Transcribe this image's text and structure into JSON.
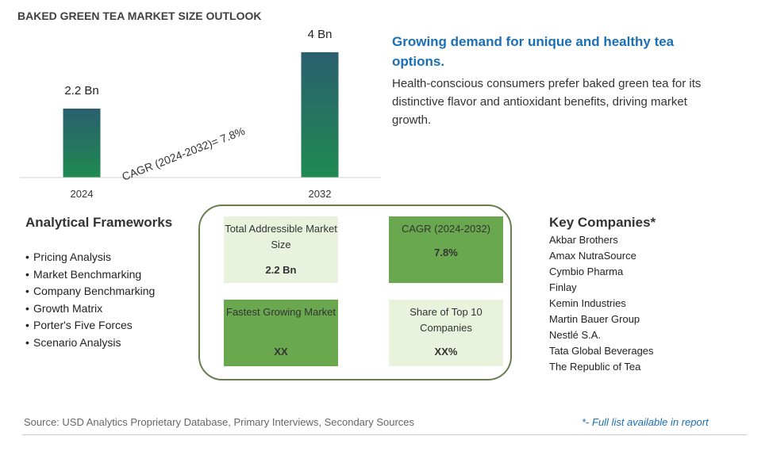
{
  "title": "BAKED GREEN TEA MARKET SIZE OUTLOOK",
  "chart_data": {
    "type": "bar",
    "categories": [
      "2024",
      "2032"
    ],
    "values": [
      2.2,
      4
    ],
    "value_labels": [
      "2.2 Bn",
      "4 Bn"
    ],
    "annotation": "CAGR (2024-2032)=  7.8%",
    "ylim": [
      0,
      4.3
    ],
    "grid": false,
    "colors": {
      "bar_top": "#2a5f6f",
      "bar_bottom": "#1f8a50"
    }
  },
  "headline": "Growing demand for unique and healthy tea options.",
  "description": "Health-conscious consumers prefer baked green tea for its distinctive flavor and antioxidant benefits, driving market growth.",
  "frameworks": {
    "title": "Analytical Frameworks",
    "items": [
      "Pricing Analysis",
      "Market Benchmarking",
      "Company Benchmarking",
      "Growth Matrix",
      "Porter's Five Forces",
      "Scenario Analysis"
    ]
  },
  "cards": {
    "tam": {
      "label": "Total Addressible Market Size",
      "value": "2.2 Bn"
    },
    "cagr": {
      "label": "CAGR (2024-2032)",
      "value": "7.8%"
    },
    "fastest": {
      "label": "Fastest Growing Market",
      "value": "XX"
    },
    "share": {
      "label": "Share of Top 10 Companies",
      "value": "XX%"
    }
  },
  "companies": {
    "title": "Key Companies*",
    "items": [
      "Akbar Brothers",
      "Amax NutraSource",
      "Cymbio Pharma",
      "Finlay",
      "Kemin Industries",
      "Martin Bauer Group",
      "Nestlé S.A.",
      "Tata Global Beverages",
      "The Republic of Tea"
    ]
  },
  "source": "Source: USD Analytics Proprietary Database, Primary Interviews, Secondary Sources",
  "note": "*- Full list available in report"
}
